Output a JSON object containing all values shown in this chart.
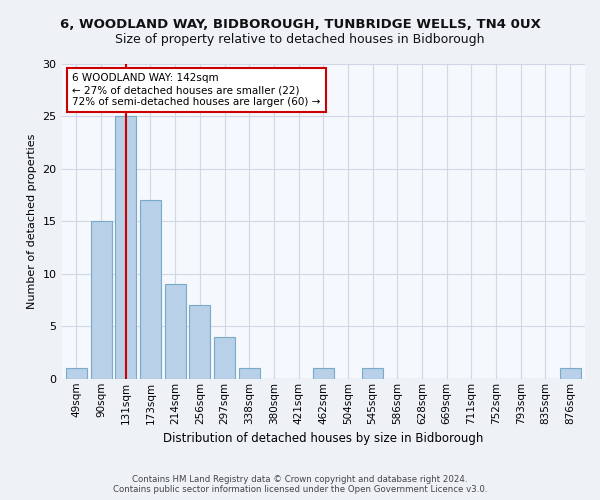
{
  "title": "6, WOODLAND WAY, BIDBOROUGH, TUNBRIDGE WELLS, TN4 0UX",
  "subtitle": "Size of property relative to detached houses in Bidborough",
  "xlabel": "Distribution of detached houses by size in Bidborough",
  "ylabel": "Number of detached properties",
  "bar_labels": [
    "49sqm",
    "90sqm",
    "131sqm",
    "173sqm",
    "214sqm",
    "256sqm",
    "297sqm",
    "338sqm",
    "380sqm",
    "421sqm",
    "462sqm",
    "504sqm",
    "545sqm",
    "586sqm",
    "628sqm",
    "669sqm",
    "711sqm",
    "752sqm",
    "793sqm",
    "835sqm",
    "876sqm"
  ],
  "bar_values": [
    1,
    15,
    25,
    17,
    9,
    7,
    4,
    1,
    0,
    0,
    1,
    0,
    1,
    0,
    0,
    0,
    0,
    0,
    0,
    0,
    1
  ],
  "bar_color": "#b8d0e8",
  "bar_edge_color": "#7aaac8",
  "ylim": [
    0,
    30
  ],
  "yticks": [
    0,
    5,
    10,
    15,
    20,
    25,
    30
  ],
  "vline_x": 2,
  "vline_color": "#cc0000",
  "annotation_text": "6 WOODLAND WAY: 142sqm\n← 27% of detached houses are smaller (22)\n72% of semi-detached houses are larger (60) →",
  "annotation_box_color": "#ffffff",
  "annotation_box_edge": "#cc0000",
  "footer_text": "Contains HM Land Registry data © Crown copyright and database right 2024.\nContains public sector information licensed under the Open Government Licence v3.0.",
  "bg_color": "#eef2f7",
  "plot_bg_color": "#f5f8fc",
  "grid_color": "#d0d8e8",
  "title_fontsize": 9.5,
  "subtitle_fontsize": 9,
  "ylabel_fontsize": 8,
  "xlabel_fontsize": 8.5,
  "tick_fontsize": 7.5,
  "annotation_fontsize": 7.5,
  "footer_fontsize": 6.2
}
